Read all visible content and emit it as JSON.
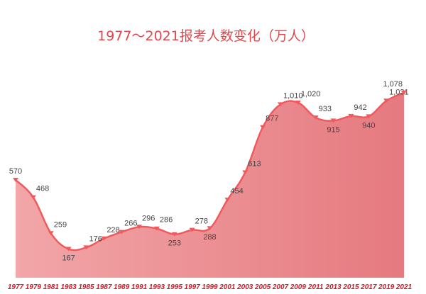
{
  "chart_data": {
    "type": "area",
    "title": "1977～2021报考人数变化（万人）",
    "xlabel": "",
    "ylabel": "",
    "x": [
      "1977",
      "1979",
      "1981",
      "1983",
      "1985",
      "1987",
      "1989",
      "1991",
      "1993",
      "1995",
      "1997",
      "1999",
      "2001",
      "2003",
      "2005",
      "2007",
      "2009",
      "2011",
      "2013",
      "2015",
      "2017",
      "2019",
      "2021"
    ],
    "values": [
      570,
      468,
      259,
      167,
      176,
      228,
      266,
      296,
      286,
      253,
      278,
      288,
      454,
      613,
      877,
      1010,
      1020,
      933,
      915,
      942,
      940,
      1031,
      1078
    ],
    "data_labels": [
      "570",
      "468",
      "259",
      "167",
      "176",
      "228",
      "266",
      "296",
      "286",
      "253",
      "278",
      "288",
      "454",
      "613",
      "877",
      "1,010",
      "1,020",
      "933",
      "915",
      "942",
      "940",
      "1,031",
      "1,078"
    ],
    "ylim": [
      0,
      1100
    ],
    "grid": false,
    "legend": "none",
    "smooth": true,
    "colors": {
      "line": "#f05a5e",
      "fill_start": "#f2a6a8",
      "fill_end": "#e57a80",
      "title": "#e2474b",
      "ticks": "#c8202a"
    }
  }
}
